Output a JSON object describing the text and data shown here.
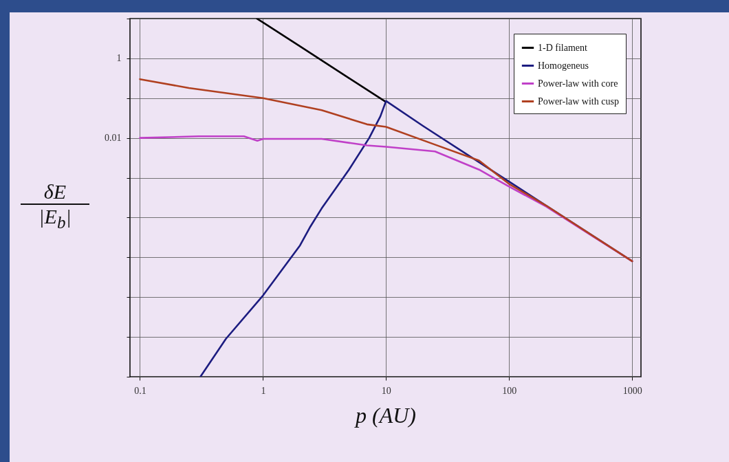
{
  "chart_data": {
    "type": "line",
    "xlabel": "p (AU)",
    "ylabel": "δE\n|E$_{b}$|",
    "xlim": [
      0.083,
      1180
    ],
    "ylim": [
      1e-08,
      10
    ],
    "xticks": [
      0.1,
      1,
      10,
      100,
      1000
    ],
    "yticks": [
      {
        "value": 1e-08,
        "label": null
      },
      {
        "value": 1e-07,
        "label": null
      },
      {
        "value": 1e-06,
        "label": null
      },
      {
        "value": 1e-05,
        "label": null
      },
      {
        "value": 0.0001,
        "label": null
      },
      {
        "value": 0.001,
        "label": null
      },
      0.01,
      {
        "value": 0.1,
        "label": null
      },
      1,
      {
        "value": 10,
        "label": null
      }
    ],
    "log": "xy",
    "grid": true,
    "legend": "top right",
    "series": [
      {
        "name": "1-D filament",
        "color": "#000000",
        "x": [
          0.89,
          1,
          2,
          5,
          10
        ],
        "values": [
          10,
          8,
          2,
          0.32,
          0.08
        ]
      },
      {
        "name": "Homogeneus",
        "color": "#1c1c80",
        "x": [
          0.31,
          0.5,
          1,
          2,
          2.4,
          3,
          5,
          7.3,
          9,
          10,
          20,
          50,
          100,
          200,
          500,
          1000
        ],
        "values": [
          1e-08,
          9e-08,
          1.1e-06,
          2e-05,
          5.6e-05,
          0.00017,
          0.0016,
          0.01,
          0.035,
          0.085,
          0.02,
          0.0032,
          0.0008,
          0.0002,
          3.2e-05,
          8e-06
        ]
      },
      {
        "name": "Power-law with core",
        "color": "#c040c8",
        "x": [
          0.1,
          0.3,
          0.7,
          0.9,
          1,
          3,
          7,
          10,
          25,
          57,
          100,
          200,
          500,
          1000
        ],
        "values": [
          0.01,
          0.011,
          0.011,
          0.0085,
          0.0095,
          0.0095,
          0.0065,
          0.006,
          0.0046,
          0.0016,
          0.0006,
          0.00019,
          3.1e-05,
          8e-06
        ]
      },
      {
        "name": "Power-law with cusp",
        "color": "#b04020",
        "x": [
          0.1,
          0.25,
          1,
          3,
          7,
          10,
          25,
          57,
          100,
          200,
          500,
          1000
        ],
        "values": [
          0.3,
          0.18,
          0.1,
          0.05,
          0.022,
          0.019,
          0.0068,
          0.0027,
          0.0007,
          0.0002,
          3.2e-05,
          8e-06
        ]
      }
    ]
  }
}
